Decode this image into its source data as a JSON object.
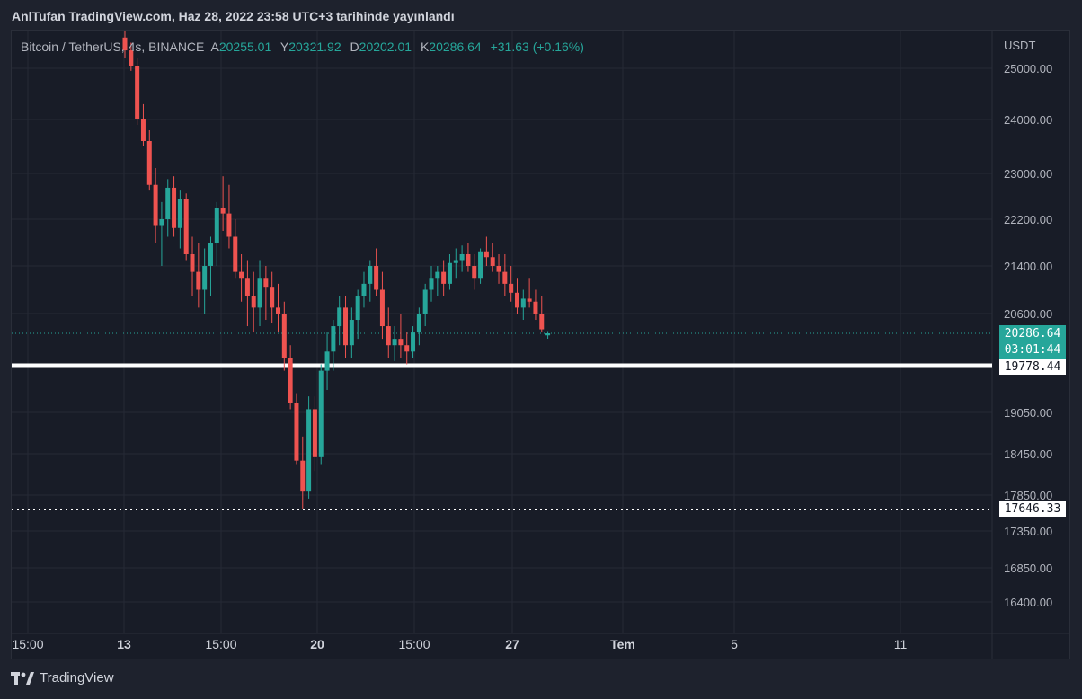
{
  "header": {
    "publish_text": "AnlTufan TradingView.com, Haz 28, 2022 23:58 UTC+3 tarihinde yayınlandı"
  },
  "legend": {
    "symbol": "Bitcoin / TetherUS, 4s, BINANCE",
    "open_label": "A",
    "open_value": "20255.01",
    "high_label": "Y",
    "high_value": "20321.92",
    "low_label": "D",
    "low_value": "20202.01",
    "close_label": "K",
    "close_value": "20286.64",
    "change": "+31.63 (+0.16%)"
  },
  "price_tags": {
    "current_price": "20286.64",
    "countdown": "03:01:44",
    "support_level": "19778.44",
    "low_level": "17646.33"
  },
  "footer": {
    "brand": "TradingView"
  },
  "colors": {
    "up": "#26a69a",
    "down": "#ef5350",
    "background": "#181c27",
    "grid": "#262a35",
    "axis_text": "#b2b5be",
    "level_line": "#ffffff"
  },
  "chart_data": {
    "type": "candlestick",
    "title": "",
    "currency": "USDT",
    "y_axis_labels": [
      "25000.00",
      "24000.00",
      "23000.00",
      "22200.00",
      "21400.00",
      "20600.00",
      "19050.00",
      "18450.00",
      "17850.00",
      "17350.00",
      "16850.00",
      "16400.00"
    ],
    "x_axis_labels": [
      "15:00",
      "13",
      "15:00",
      "20",
      "15:00",
      "27",
      "Tem",
      "5",
      "11"
    ],
    "horizontal_levels": [
      {
        "price": 19778.44,
        "style": "solid"
      },
      {
        "price": 17646.33,
        "style": "dotted"
      },
      {
        "price": 20286.64,
        "style": "current"
      }
    ],
    "ohlc": [
      [
        25600,
        25800,
        25200,
        25350
      ],
      [
        25350,
        25500,
        24950,
        25050
      ],
      [
        25050,
        25200,
        23900,
        24000
      ],
      [
        24000,
        24300,
        23500,
        23600
      ],
      [
        23600,
        23800,
        22700,
        22800
      ],
      [
        22800,
        23100,
        21800,
        22100
      ],
      [
        22100,
        22500,
        21400,
        22200
      ],
      [
        22200,
        22900,
        21900,
        22750
      ],
      [
        22750,
        22950,
        21900,
        22050
      ],
      [
        22050,
        22700,
        21700,
        22550
      ],
      [
        22550,
        22650,
        21500,
        21600
      ],
      [
        21600,
        21900,
        20900,
        21300
      ],
      [
        21300,
        21800,
        20700,
        21000
      ],
      [
        21000,
        21700,
        20600,
        21400
      ],
      [
        21400,
        21900,
        20900,
        21800
      ],
      [
        21800,
        22500,
        21400,
        22400
      ],
      [
        22400,
        22950,
        22000,
        22300
      ],
      [
        22300,
        22800,
        21700,
        21900
      ],
      [
        21900,
        22200,
        21200,
        21300
      ],
      [
        21300,
        21600,
        20800,
        21200
      ],
      [
        21200,
        21500,
        20400,
        20900
      ],
      [
        20900,
        21300,
        20300,
        20700
      ],
      [
        20700,
        21500,
        20400,
        21200
      ],
      [
        21200,
        21400,
        20500,
        21050
      ],
      [
        21050,
        21300,
        20450,
        20700
      ],
      [
        20700,
        21100,
        20300,
        20600
      ],
      [
        20600,
        20800,
        19700,
        19900
      ],
      [
        19900,
        20100,
        19100,
        19200
      ],
      [
        19200,
        19350,
        18300,
        18350
      ],
      [
        18350,
        18700,
        17650,
        17900
      ],
      [
        17900,
        19300,
        17800,
        19100
      ],
      [
        19100,
        19300,
        18200,
        18400
      ],
      [
        18400,
        19800,
        18300,
        19700
      ],
      [
        19700,
        20300,
        19400,
        20000
      ],
      [
        20000,
        20500,
        19700,
        20400
      ],
      [
        20400,
        20900,
        20100,
        20700
      ],
      [
        20700,
        20900,
        19900,
        20100
      ],
      [
        20100,
        20700,
        19900,
        20500
      ],
      [
        20500,
        21000,
        20200,
        20900
      ],
      [
        20900,
        21300,
        20700,
        21100
      ],
      [
        21100,
        21500,
        20800,
        21400
      ],
      [
        21400,
        21700,
        20900,
        21000
      ],
      [
        21000,
        21300,
        20200,
        20400
      ],
      [
        20400,
        20700,
        19900,
        20100
      ],
      [
        20100,
        20400,
        19850,
        20200
      ],
      [
        20200,
        20600,
        19900,
        20100
      ],
      [
        20100,
        20300,
        19800,
        20000
      ],
      [
        20000,
        20400,
        19900,
        20300
      ],
      [
        20300,
        20700,
        20100,
        20600
      ],
      [
        20600,
        21100,
        20400,
        21000
      ],
      [
        21000,
        21400,
        20800,
        21200
      ],
      [
        21200,
        21400,
        20900,
        21300
      ],
      [
        21300,
        21500,
        20900,
        21100
      ],
      [
        21100,
        21600,
        21000,
        21450
      ],
      [
        21450,
        21700,
        21200,
        21500
      ],
      [
        21500,
        21750,
        21300,
        21600
      ],
      [
        21600,
        21800,
        21300,
        21400
      ],
      [
        21400,
        21600,
        21000,
        21200
      ],
      [
        21200,
        21700,
        21100,
        21650
      ],
      [
        21650,
        21900,
        21400,
        21550
      ],
      [
        21550,
        21800,
        21300,
        21400
      ],
      [
        21400,
        21600,
        21100,
        21300
      ],
      [
        21300,
        21600,
        20900,
        21100
      ],
      [
        21100,
        21400,
        20800,
        20950
      ],
      [
        20950,
        21200,
        20600,
        20700
      ],
      [
        20700,
        21000,
        20500,
        20850
      ],
      [
        20850,
        21200,
        20700,
        20800
      ],
      [
        20800,
        21000,
        20500,
        20600
      ],
      [
        20600,
        20900,
        20300,
        20350
      ],
      [
        20255.01,
        20321.92,
        20202.01,
        20286.64
      ]
    ]
  }
}
